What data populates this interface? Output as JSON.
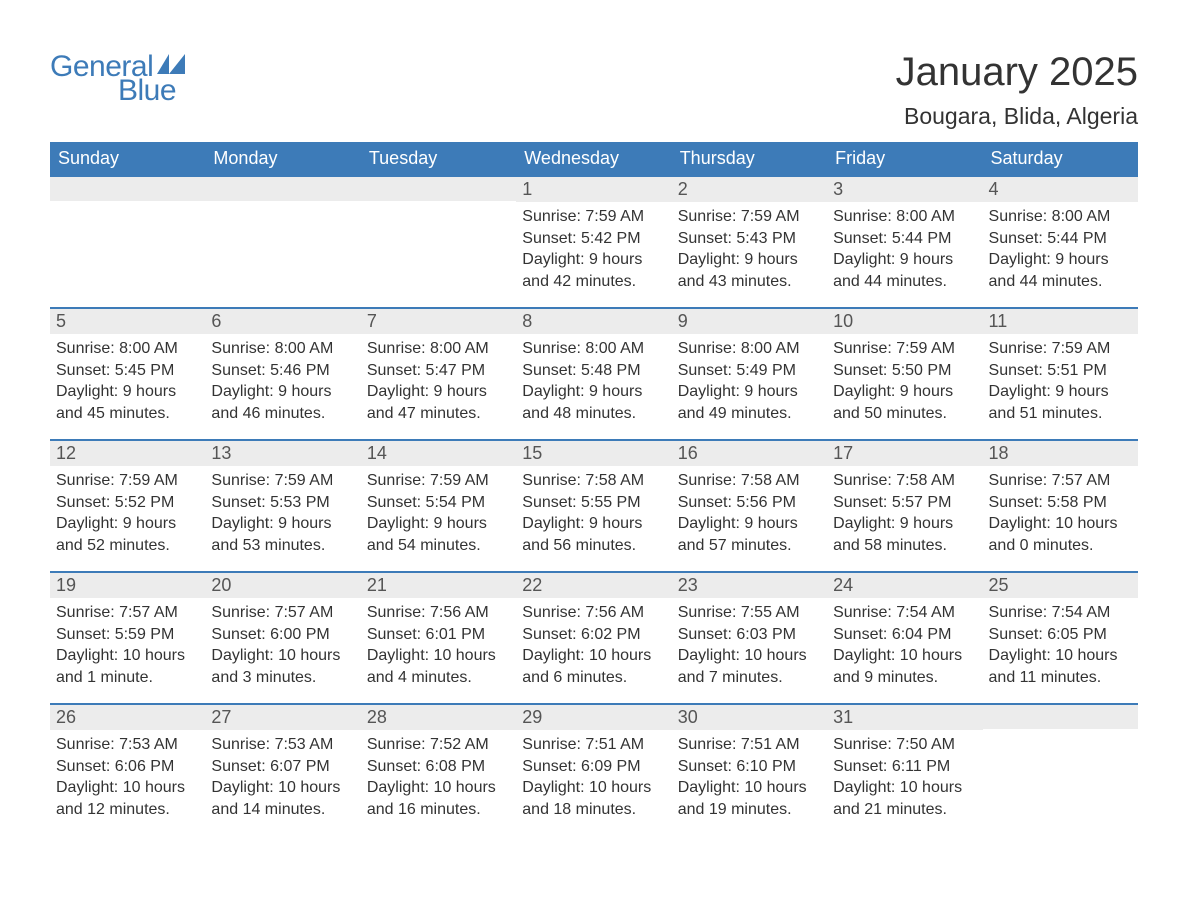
{
  "logo": {
    "text1": "General",
    "text2": "Blue"
  },
  "header": {
    "month_title": "January 2025",
    "location": "Bougara, Blida, Algeria"
  },
  "style": {
    "accent_color": "#3d7bb8",
    "header_bg": "#3d7bb8",
    "header_fg": "#ffffff",
    "daynum_bg": "#ececec",
    "body_bg": "#ffffff",
    "text_color": "#333333",
    "cell_border_top": "#3d7bb8",
    "font_family": "Arial",
    "month_title_fontsize": 40,
    "location_fontsize": 23,
    "weekday_fontsize": 18,
    "daynum_fontsize": 18,
    "body_fontsize": 16
  },
  "calendar": {
    "type": "table",
    "weekdays": [
      "Sunday",
      "Monday",
      "Tuesday",
      "Wednesday",
      "Thursday",
      "Friday",
      "Saturday"
    ],
    "weeks": [
      [
        null,
        null,
        null,
        {
          "day": "1",
          "sunrise": "7:59 AM",
          "sunset": "5:42 PM",
          "daylight": "9 hours and 42 minutes."
        },
        {
          "day": "2",
          "sunrise": "7:59 AM",
          "sunset": "5:43 PM",
          "daylight": "9 hours and 43 minutes."
        },
        {
          "day": "3",
          "sunrise": "8:00 AM",
          "sunset": "5:44 PM",
          "daylight": "9 hours and 44 minutes."
        },
        {
          "day": "4",
          "sunrise": "8:00 AM",
          "sunset": "5:44 PM",
          "daylight": "9 hours and 44 minutes."
        }
      ],
      [
        {
          "day": "5",
          "sunrise": "8:00 AM",
          "sunset": "5:45 PM",
          "daylight": "9 hours and 45 minutes."
        },
        {
          "day": "6",
          "sunrise": "8:00 AM",
          "sunset": "5:46 PM",
          "daylight": "9 hours and 46 minutes."
        },
        {
          "day": "7",
          "sunrise": "8:00 AM",
          "sunset": "5:47 PM",
          "daylight": "9 hours and 47 minutes."
        },
        {
          "day": "8",
          "sunrise": "8:00 AM",
          "sunset": "5:48 PM",
          "daylight": "9 hours and 48 minutes."
        },
        {
          "day": "9",
          "sunrise": "8:00 AM",
          "sunset": "5:49 PM",
          "daylight": "9 hours and 49 minutes."
        },
        {
          "day": "10",
          "sunrise": "7:59 AM",
          "sunset": "5:50 PM",
          "daylight": "9 hours and 50 minutes."
        },
        {
          "day": "11",
          "sunrise": "7:59 AM",
          "sunset": "5:51 PM",
          "daylight": "9 hours and 51 minutes."
        }
      ],
      [
        {
          "day": "12",
          "sunrise": "7:59 AM",
          "sunset": "5:52 PM",
          "daylight": "9 hours and 52 minutes."
        },
        {
          "day": "13",
          "sunrise": "7:59 AM",
          "sunset": "5:53 PM",
          "daylight": "9 hours and 53 minutes."
        },
        {
          "day": "14",
          "sunrise": "7:59 AM",
          "sunset": "5:54 PM",
          "daylight": "9 hours and 54 minutes."
        },
        {
          "day": "15",
          "sunrise": "7:58 AM",
          "sunset": "5:55 PM",
          "daylight": "9 hours and 56 minutes."
        },
        {
          "day": "16",
          "sunrise": "7:58 AM",
          "sunset": "5:56 PM",
          "daylight": "9 hours and 57 minutes."
        },
        {
          "day": "17",
          "sunrise": "7:58 AM",
          "sunset": "5:57 PM",
          "daylight": "9 hours and 58 minutes."
        },
        {
          "day": "18",
          "sunrise": "7:57 AM",
          "sunset": "5:58 PM",
          "daylight": "10 hours and 0 minutes."
        }
      ],
      [
        {
          "day": "19",
          "sunrise": "7:57 AM",
          "sunset": "5:59 PM",
          "daylight": "10 hours and 1 minute."
        },
        {
          "day": "20",
          "sunrise": "7:57 AM",
          "sunset": "6:00 PM",
          "daylight": "10 hours and 3 minutes."
        },
        {
          "day": "21",
          "sunrise": "7:56 AM",
          "sunset": "6:01 PM",
          "daylight": "10 hours and 4 minutes."
        },
        {
          "day": "22",
          "sunrise": "7:56 AM",
          "sunset": "6:02 PM",
          "daylight": "10 hours and 6 minutes."
        },
        {
          "day": "23",
          "sunrise": "7:55 AM",
          "sunset": "6:03 PM",
          "daylight": "10 hours and 7 minutes."
        },
        {
          "day": "24",
          "sunrise": "7:54 AM",
          "sunset": "6:04 PM",
          "daylight": "10 hours and 9 minutes."
        },
        {
          "day": "25",
          "sunrise": "7:54 AM",
          "sunset": "6:05 PM",
          "daylight": "10 hours and 11 minutes."
        }
      ],
      [
        {
          "day": "26",
          "sunrise": "7:53 AM",
          "sunset": "6:06 PM",
          "daylight": "10 hours and 12 minutes."
        },
        {
          "day": "27",
          "sunrise": "7:53 AM",
          "sunset": "6:07 PM",
          "daylight": "10 hours and 14 minutes."
        },
        {
          "day": "28",
          "sunrise": "7:52 AM",
          "sunset": "6:08 PM",
          "daylight": "10 hours and 16 minutes."
        },
        {
          "day": "29",
          "sunrise": "7:51 AM",
          "sunset": "6:09 PM",
          "daylight": "10 hours and 18 minutes."
        },
        {
          "day": "30",
          "sunrise": "7:51 AM",
          "sunset": "6:10 PM",
          "daylight": "10 hours and 19 minutes."
        },
        {
          "day": "31",
          "sunrise": "7:50 AM",
          "sunset": "6:11 PM",
          "daylight": "10 hours and 21 minutes."
        },
        null
      ]
    ],
    "labels": {
      "sunrise_prefix": "Sunrise: ",
      "sunset_prefix": "Sunset: ",
      "daylight_prefix": "Daylight: "
    }
  }
}
